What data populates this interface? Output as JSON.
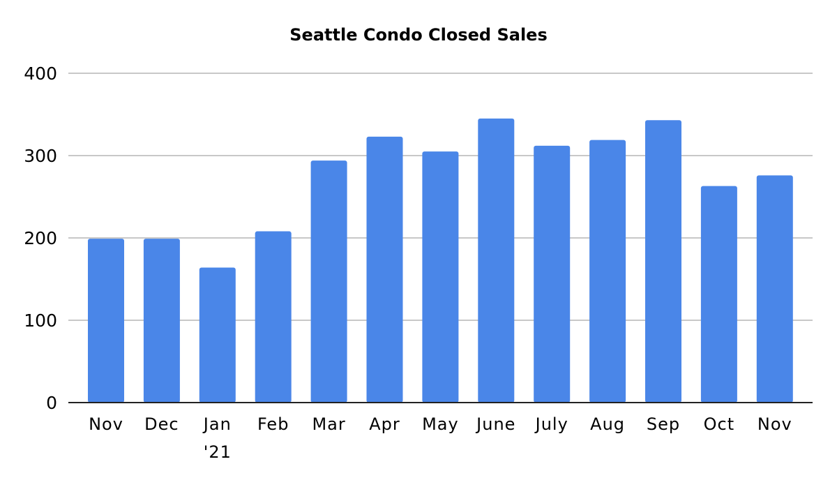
{
  "chart_data": {
    "type": "bar",
    "title": "Seattle Condo Closed Sales",
    "xlabel": "",
    "ylabel": "",
    "categories": [
      "Nov",
      "Dec",
      "Jan",
      "Feb",
      "Mar",
      "Apr",
      "May",
      "June",
      "July",
      "Aug",
      "Sep",
      "Oct",
      "Nov"
    ],
    "category_sublabels": [
      "",
      "",
      "'21",
      "",
      "",
      "",
      "",
      "",
      "",
      "",
      "",
      "",
      ""
    ],
    "values": [
      199,
      199,
      164,
      208,
      294,
      323,
      305,
      345,
      312,
      319,
      343,
      263,
      276
    ],
    "ylim": [
      0,
      400
    ],
    "yticks": [
      0,
      100,
      200,
      300,
      400
    ],
    "grid": true,
    "legend": "none",
    "bar_color": "#4a86e8"
  }
}
